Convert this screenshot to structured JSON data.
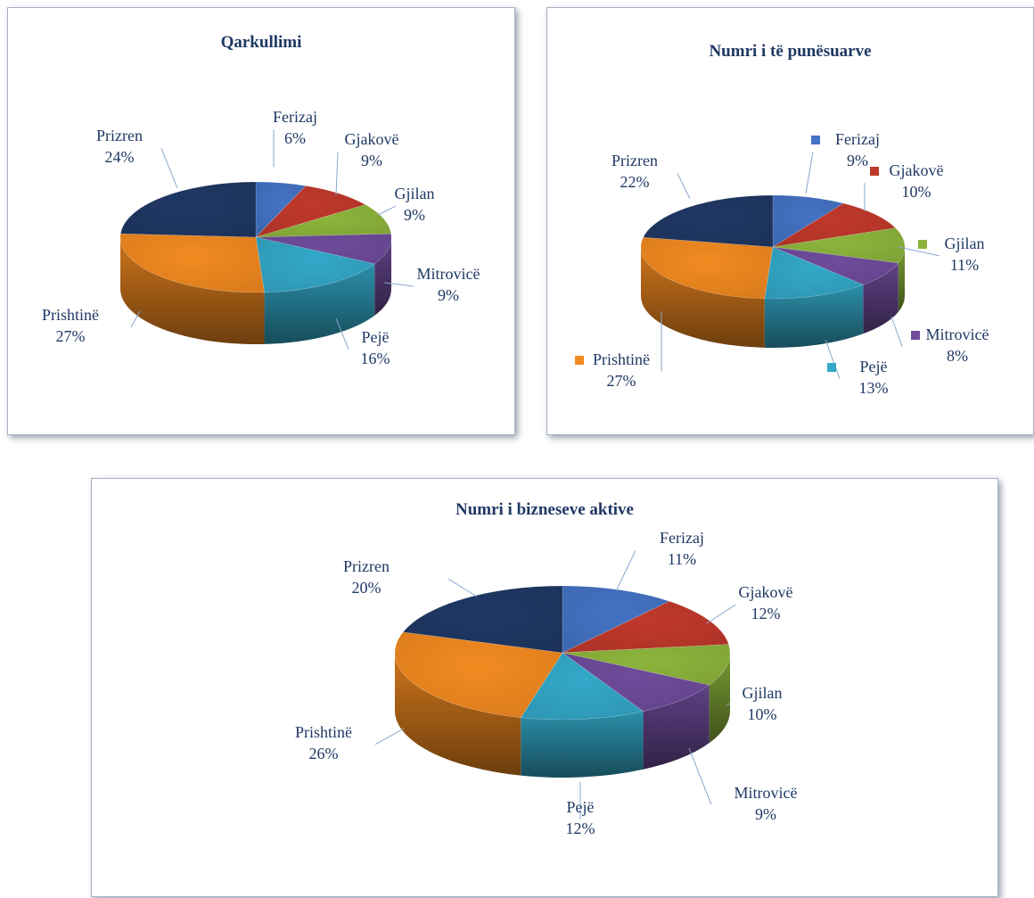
{
  "charts": [
    {
      "id": "p1",
      "chart_data": {
        "type": "pie",
        "title": "Qarkullimi",
        "categories": [
          "Ferizaj",
          "Gjakovë",
          "Gjilan",
          "Mitrovicë",
          "Pejë",
          "Prishtinë",
          "Prizren"
        ],
        "labels": [
          "6%",
          "9%",
          "9%",
          "9%",
          "16%",
          "27%",
          "24%"
        ],
        "values": [
          6,
          9,
          9,
          9,
          16,
          27,
          24
        ],
        "legend": "none",
        "style": "3d-pie"
      }
    },
    {
      "id": "p2",
      "chart_data": {
        "type": "pie",
        "title": "Numri i të punësuarve",
        "categories": [
          "Ferizaj",
          "Gjakovë",
          "Gjilan",
          "Mitrovicë",
          "Pejë",
          "Prishtinë",
          "Prizren"
        ],
        "labels": [
          "9%",
          "10%",
          "11%",
          "8%",
          "13%",
          "27%",
          "22%"
        ],
        "values": [
          9,
          10,
          11,
          8,
          13,
          27,
          22
        ],
        "legend": "inline-markers",
        "style": "3d-pie"
      }
    },
    {
      "id": "p3",
      "chart_data": {
        "type": "pie",
        "title": "Numri i bizneseve aktive",
        "categories": [
          "Ferizaj",
          "Gjakovë",
          "Gjilan",
          "Mitrovicë",
          "Pejë",
          "Prishtinë",
          "Prizren"
        ],
        "labels": [
          "11%",
          "12%",
          "10%",
          "9%",
          "12%",
          "26%",
          "20%"
        ],
        "values": [
          11,
          12,
          10,
          9,
          12,
          26,
          20
        ],
        "legend": "none",
        "style": "3d-pie"
      }
    }
  ],
  "colors": [
    "#4472c4",
    "#c0392b",
    "#8db53c",
    "#6f4c9b",
    "#33a8c8",
    "#f28a20",
    "#1f3864"
  ],
  "label_color": "#1f3864"
}
